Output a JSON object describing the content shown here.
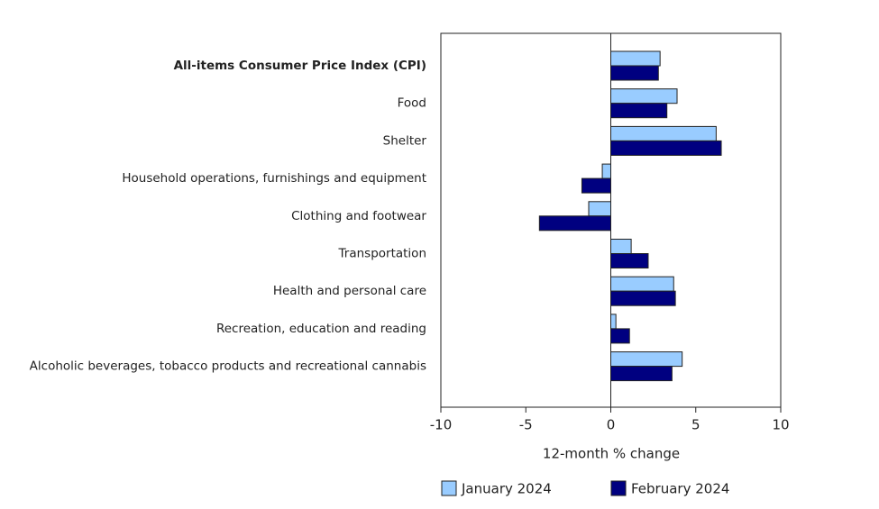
{
  "chart_data": {
    "type": "barh",
    "categories": [
      "All-items Consumer Price Index (CPI)",
      "Food",
      "Shelter",
      "Household operations, furnishings and equipment",
      "Clothing and footwear",
      "Transportation",
      "Health and personal care",
      "Recreation, education and reading",
      "Alcoholic beverages, tobacco products and recreational cannabis"
    ],
    "series": [
      {
        "name": "January 2024",
        "color": "#99ccff",
        "values": [
          2.9,
          3.9,
          6.2,
          -0.5,
          -1.3,
          1.2,
          3.7,
          0.3,
          4.2
        ]
      },
      {
        "name": "February 2024",
        "color": "#000080",
        "values": [
          2.8,
          3.3,
          6.5,
          -1.7,
          -4.2,
          2.2,
          3.8,
          1.1,
          3.6
        ]
      }
    ],
    "xlabel": "12-month % change",
    "xlim": [
      -10,
      10
    ],
    "xticks": [
      -10,
      -5,
      0,
      5,
      10
    ]
  }
}
